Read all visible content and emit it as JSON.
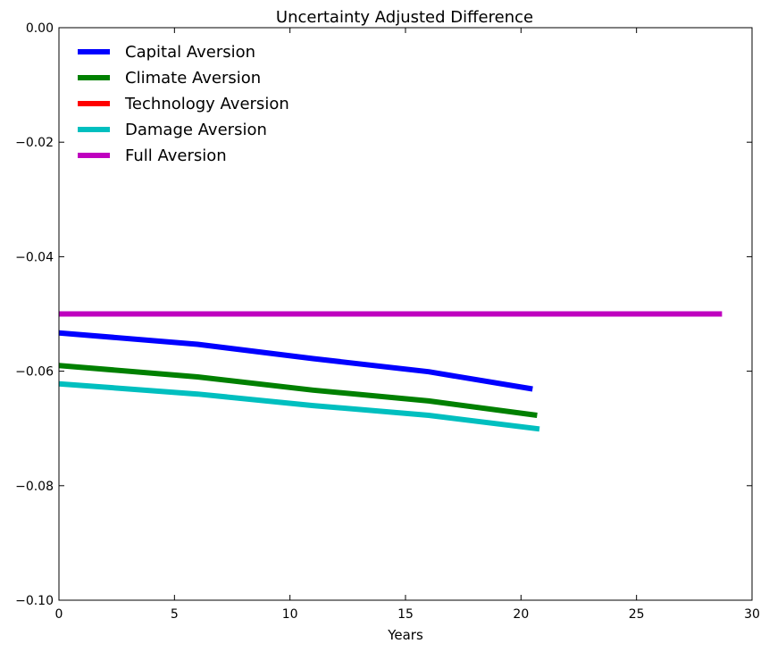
{
  "chart_data": {
    "type": "line",
    "title": "Uncertainty Adjusted Difference",
    "xlabel": "Years",
    "ylabel": "",
    "xlim": [
      0,
      30
    ],
    "ylim": [
      -0.1,
      0.0
    ],
    "xticks": [
      0,
      5,
      10,
      15,
      20,
      25,
      30
    ],
    "yticks": [
      -0.1,
      -0.08,
      -0.06,
      -0.04,
      -0.02,
      0.0
    ],
    "xtick_labels": [
      "0",
      "5",
      "10",
      "15",
      "20",
      "25",
      "30"
    ],
    "ytick_labels": [
      "−0.10",
      "−0.08",
      "−0.06",
      "−0.04",
      "−0.02",
      "0.00"
    ],
    "grid": false,
    "legend_position": "top-left",
    "series": [
      {
        "name": "Capital Aversion",
        "color": "#0000ff",
        "points": [
          [
            0,
            -0.0533
          ],
          [
            6,
            -0.0553
          ],
          [
            11,
            -0.0578
          ],
          [
            16,
            -0.0601
          ],
          [
            20.5,
            -0.0631
          ]
        ]
      },
      {
        "name": "Climate Aversion",
        "color": "#008000",
        "points": [
          [
            0,
            -0.059
          ],
          [
            6,
            -0.061
          ],
          [
            11,
            -0.0633
          ],
          [
            16,
            -0.0652
          ],
          [
            20.7,
            -0.0677
          ]
        ]
      },
      {
        "name": "Technology Aversion",
        "color": "#ff0000",
        "points": []
      },
      {
        "name": "Damage Aversion",
        "color": "#00bfbf",
        "points": [
          [
            0,
            -0.0622
          ],
          [
            6,
            -0.064
          ],
          [
            11,
            -0.066
          ],
          [
            16,
            -0.0677
          ],
          [
            20.8,
            -0.0701
          ]
        ]
      },
      {
        "name": "Full Aversion",
        "color": "#bf00bf",
        "points": [
          [
            0,
            -0.05
          ],
          [
            28.7,
            -0.05
          ]
        ]
      }
    ]
  }
}
